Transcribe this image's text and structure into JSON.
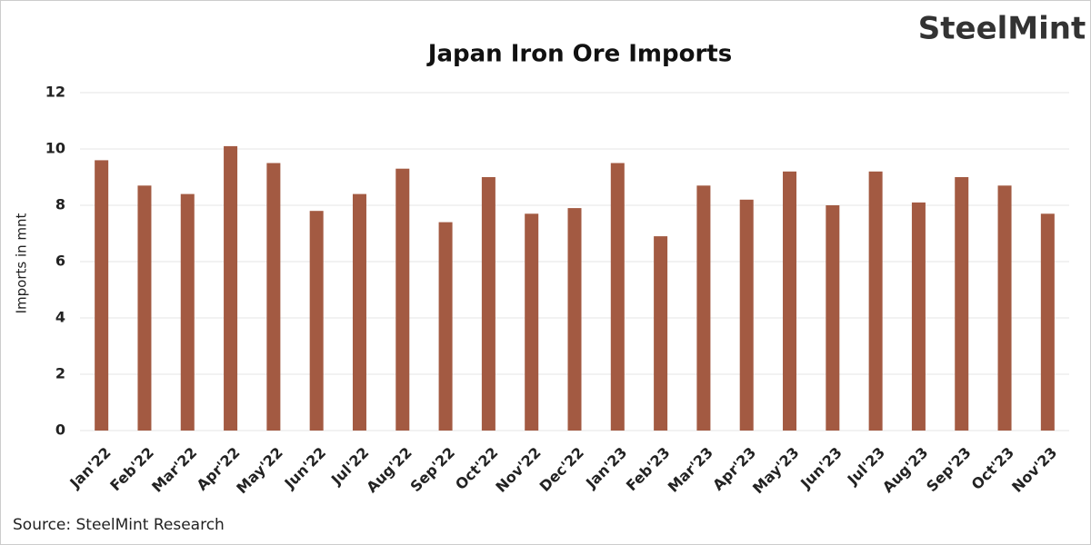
{
  "chart_data": {
    "type": "bar",
    "title": "Japan Iron Ore Imports",
    "logo": "SteelMint",
    "y_label": "Imports in mnt",
    "source": "Source: SteelMint Research",
    "categories": [
      "Jan'22",
      "Feb'22",
      "Mar'22",
      "Apr'22",
      "May'22",
      "Jun'22",
      "Jul'22",
      "Aug'22",
      "Sep'22",
      "Oct'22",
      "Nov'22",
      "Dec'22",
      "Jan'23",
      "Feb'23",
      "Mar'23",
      "Apr'23",
      "May'23",
      "Jun'23",
      "Jul'23",
      "Aug'23",
      "Sep'23",
      "Oct'23",
      "Nov'23"
    ],
    "values": [
      9.6,
      8.7,
      8.4,
      10.1,
      9.5,
      7.8,
      8.4,
      9.3,
      7.4,
      9.0,
      7.7,
      7.9,
      9.5,
      6.9,
      8.7,
      8.2,
      9.2,
      8.0,
      9.2,
      8.1,
      9.0,
      8.7,
      7.7
    ],
    "color": "#a35a42",
    "ylim": [
      0,
      12
    ],
    "yticks": [
      0,
      2,
      4,
      6,
      8,
      10,
      12
    ],
    "grid": true
  }
}
